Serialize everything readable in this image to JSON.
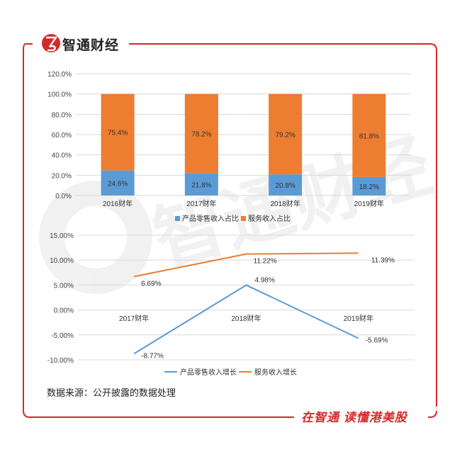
{
  "header": {
    "brand": "智通财经"
  },
  "footer": {
    "slogan": "在智通 读懂港美股",
    "source": "数据来源：公开披露的数据处理"
  },
  "watermark": {
    "text": "智通财经"
  },
  "colors": {
    "blue": "#5b9bd5",
    "orange": "#ed7d31",
    "frame": "#d42a2a"
  },
  "chart_data": [
    {
      "type": "bar",
      "stacked": true,
      "categories": [
        "2016财年",
        "2017财年",
        "2018财年",
        "2019财年"
      ],
      "series": [
        {
          "name": "产品零售收入占比",
          "values": [
            24.6,
            21.8,
            20.8,
            18.2
          ],
          "labels": [
            "24.6%",
            "21.8%",
            "20.8%",
            "18.2%"
          ]
        },
        {
          "name": "服务收入占比",
          "values": [
            75.4,
            78.2,
            79.2,
            81.8
          ],
          "labels": [
            "75.4%",
            "78.2%",
            "79.2%",
            "81.8%"
          ]
        }
      ],
      "ylim": [
        0,
        120
      ],
      "yticks": [
        "0.0%",
        "20.0%",
        "40.0%",
        "60.0%",
        "80.0%",
        "100.0%",
        "120.0%"
      ],
      "legend_position": "bottom",
      "grid": true
    },
    {
      "type": "line",
      "categories": [
        "2017财年",
        "2018财年",
        "2019财年"
      ],
      "series": [
        {
          "name": "产品零售收入增长",
          "values": [
            -8.77,
            4.98,
            -5.69
          ],
          "labels": [
            "-8.77%",
            "4.98%",
            "-5.69%"
          ]
        },
        {
          "name": "服务收入增长",
          "values": [
            6.69,
            11.22,
            11.39
          ],
          "labels": [
            "6.69%",
            "11.22%",
            "11.39%"
          ]
        }
      ],
      "ylim": [
        -10,
        15
      ],
      "yticks": [
        "-10.00%",
        "-5.00%",
        "0.00%",
        "5.00%",
        "10.00%",
        "15.00%"
      ],
      "legend_position": "bottom",
      "grid": true
    }
  ]
}
